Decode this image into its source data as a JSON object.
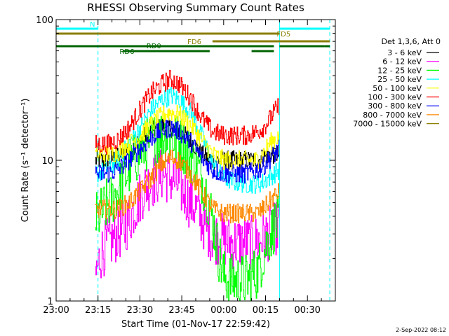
{
  "chart_data": {
    "type": "line",
    "title": "RHESSI Observing Summary Count Rates",
    "xlabel": "Start Time (01-Nov-17 22:59:42)",
    "ylabel": "Count Rate (s⁻¹ detector⁻¹)",
    "yscale": "log",
    "ylim": [
      1,
      100
    ],
    "y_ticks": [
      {
        "v": 1,
        "label": "1"
      },
      {
        "v": 10,
        "label": "10"
      },
      {
        "v": 100,
        "label": "100"
      }
    ],
    "x_ticks": [
      {
        "t": 0,
        "label": "23:00"
      },
      {
        "t": 15,
        "label": "23:15"
      },
      {
        "t": 30,
        "label": "23:30"
      },
      {
        "t": 45,
        "label": "23:45"
      },
      {
        "t": 60,
        "label": "00:00"
      },
      {
        "t": 75,
        "label": "00:15"
      },
      {
        "t": 90,
        "label": "00:30"
      }
    ],
    "x_range_min": [
      0,
      100
    ],
    "legend_header": "Det 1,3,6, Att 0",
    "grid": false,
    "legend_position": "right",
    "series": [
      {
        "name": "3 - 6 keV",
        "color": "#000000",
        "x": [
          14,
          18,
          22,
          26,
          30,
          34,
          38,
          41,
          44,
          48,
          52,
          56,
          60,
          64,
          68,
          72,
          74,
          76,
          78,
          80
        ],
        "y": [
          10,
          10,
          10.5,
          12,
          14,
          16,
          17.5,
          17,
          16,
          14,
          11,
          10,
          10,
          10,
          10,
          10,
          10.5,
          11,
          11,
          11
        ]
      },
      {
        "name": "6 - 12 keV",
        "color": "#ff00ff",
        "x": [
          14,
          16,
          18,
          20,
          22,
          24,
          26,
          28,
          30,
          32,
          34,
          36,
          38,
          40,
          42,
          44,
          46,
          48,
          50,
          52,
          54,
          56,
          58,
          60,
          62,
          64,
          66,
          68,
          70,
          72,
          74,
          76,
          78,
          80
        ],
        "y": [
          1.5,
          2.2,
          2.5,
          2.7,
          3,
          3.2,
          3.8,
          4.6,
          5.5,
          6.5,
          7,
          7.5,
          8,
          7.6,
          7.2,
          6.5,
          5.8,
          5,
          4.6,
          3.8,
          3.2,
          2.9,
          2.8,
          2.7,
          2.6,
          2.6,
          2.6,
          2.6,
          2.6,
          2.7,
          2.8,
          3,
          3.2,
          3.5
        ]
      },
      {
        "name": "12 - 25 keV",
        "color": "#00ff00",
        "x": [
          14,
          16,
          18,
          20,
          22,
          24,
          26,
          28,
          30,
          32,
          34,
          36,
          38,
          40,
          42,
          44,
          46,
          48,
          50,
          52,
          54,
          56,
          58,
          60,
          62,
          64,
          66,
          68,
          70,
          72,
          74,
          76,
          78,
          80
        ],
        "y": [
          3.8,
          4.2,
          4.8,
          5.3,
          6.1,
          7.2,
          8.5,
          10,
          11.5,
          12.7,
          13.8,
          14.5,
          15.2,
          14.8,
          14.3,
          13.5,
          12.2,
          10.8,
          9.4,
          7.6,
          5.6,
          3.7,
          2.2,
          1.5,
          1.4,
          1.4,
          1.4,
          1.4,
          1.5,
          1.6,
          2.1,
          2.8,
          3.4,
          3.7
        ]
      },
      {
        "name": "25 - 50 keV",
        "color": "#00ffff",
        "x": [
          14,
          18,
          22,
          26,
          30,
          34,
          38,
          41,
          44,
          48,
          52,
          56,
          60,
          64,
          68,
          72,
          74,
          76,
          78,
          80
        ],
        "y": [
          8,
          8.5,
          10,
          13,
          17,
          23,
          27,
          29,
          27,
          22,
          15,
          9.5,
          7.5,
          7,
          6.8,
          6.8,
          7,
          7.5,
          8,
          8.5
        ]
      },
      {
        "name": "50 - 100 keV",
        "color": "#ffff00",
        "x": [
          14,
          18,
          22,
          26,
          30,
          34,
          38,
          41,
          44,
          48,
          52,
          56,
          60,
          64,
          68,
          72,
          74,
          76,
          78,
          80
        ],
        "y": [
          11,
          11,
          11.5,
          13,
          15,
          18,
          21,
          22,
          21,
          18,
          14,
          11,
          10,
          10,
          10,
          10,
          11,
          13,
          14,
          15
        ]
      },
      {
        "name": "100 - 300 keV",
        "color": "#ff0000",
        "x": [
          14,
          18,
          22,
          26,
          30,
          34,
          38,
          41,
          44,
          48,
          52,
          56,
          60,
          64,
          68,
          72,
          74,
          76,
          78,
          80
        ],
        "y": [
          13,
          13,
          14,
          17,
          23,
          30,
          35,
          38,
          35,
          28,
          20,
          16,
          15,
          15,
          15,
          16,
          17,
          19,
          22,
          25
        ]
      },
      {
        "name": "300 - 800 keV",
        "color": "#0000ff",
        "x": [
          14,
          18,
          22,
          26,
          30,
          34,
          38,
          41,
          44,
          48,
          52,
          56,
          60,
          64,
          68,
          72,
          74,
          76,
          78,
          80
        ],
        "y": [
          8,
          8,
          8.5,
          10,
          12,
          14.5,
          16.5,
          17,
          16,
          13.5,
          10.5,
          8.5,
          8,
          8,
          8,
          8.5,
          9,
          10,
          11,
          12
        ]
      },
      {
        "name": "800 - 7000 keV",
        "color": "#ff8800",
        "x": [
          14,
          18,
          22,
          26,
          30,
          34,
          38,
          41,
          44,
          48,
          52,
          56,
          60,
          64,
          68,
          72,
          74,
          76,
          78,
          80
        ],
        "y": [
          4.5,
          4.5,
          4.5,
          5,
          6,
          7.5,
          9.5,
          10.5,
          10,
          8,
          6,
          4.5,
          4.2,
          4.2,
          4.2,
          4.2,
          4.5,
          5,
          5.5,
          6
        ]
      },
      {
        "name": "7000 - 15000 keV",
        "color": "#8b7d00",
        "x": [],
        "y": []
      }
    ],
    "flags": [
      {
        "label": "N",
        "color": "#00ffff",
        "segments": [
          [
            0,
            15
          ],
          [
            80,
            98
          ]
        ],
        "level": 1,
        "markers": [
          15,
          80,
          98
        ]
      },
      {
        "label": "FD5",
        "color": "#8b7d00",
        "segments": [
          [
            0,
            80
          ]
        ],
        "level": 2
      },
      {
        "label": "FD6",
        "color": "#8b7d00",
        "segments": [
          [
            56,
            98
          ]
        ],
        "level": 3
      },
      {
        "label": "RD0",
        "color": "#006400",
        "segments": [
          [
            0,
            78
          ],
          [
            80,
            96
          ],
          [
            96,
            98
          ]
        ],
        "level": 4
      },
      {
        "label": "RD6",
        "color": "#006400",
        "segments": [
          [
            24,
            55
          ],
          [
            70,
            78
          ]
        ],
        "level": 5
      }
    ]
  },
  "timestamp": "2-Sep-2022 08:12"
}
